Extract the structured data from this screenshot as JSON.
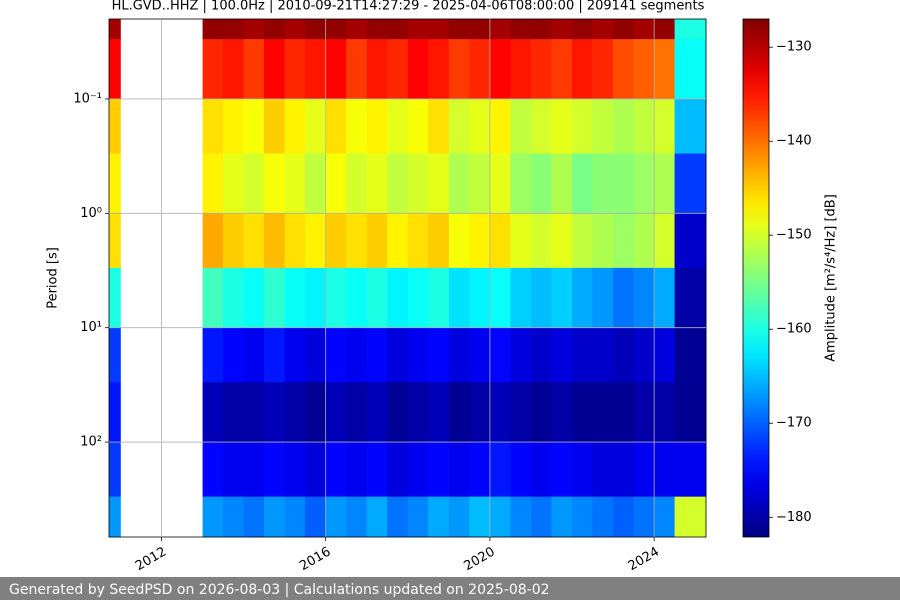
{
  "chart_data": {
    "type": "heatmap",
    "title": "HL.GVD..HHZ | 100.0Hz | 2010-09-21T14:27:29 - 2025-04-06T08:00:00 | 209141 segments",
    "ylabel": "Period [s]",
    "colorbar_label": "Amplitude [m²/s⁴/Hz] [dB]",
    "footer": "Generated by SeedPSD on 2026-08-03 | Calculations updated on 2025-08-02",
    "colormap": "jet",
    "grid": true,
    "ylog": true,
    "y_inverted": true,
    "xlim": [
      "2010-09-21T14:27:29",
      "2025-04-06T08:00:00"
    ],
    "xticks": [
      2012,
      2016,
      2020,
      2024
    ],
    "ylim": [
      0.02,
      676
    ],
    "yticks": [
      {
        "value": 0.1,
        "label": "10⁻¹"
      },
      {
        "value": 1,
        "label": "10⁰"
      },
      {
        "value": 10,
        "label": "10¹"
      },
      {
        "value": 100,
        "label": "10²"
      }
    ],
    "clim": [
      -182.1,
      -127
    ],
    "cticks": [
      {
        "value": -180,
        "label": "−180"
      },
      {
        "value": -170,
        "label": "−170"
      },
      {
        "value": -160,
        "label": "−160"
      },
      {
        "value": -150,
        "label": "−150"
      },
      {
        "value": -140,
        "label": "−140"
      },
      {
        "value": -130,
        "label": "−130"
      }
    ],
    "x": [
      "2010-09-21T14:27:29",
      "2011-01",
      "2013-01",
      "2013-07",
      "2014-01",
      "2014-07",
      "2015-01",
      "2015-07",
      "2016-01",
      "2016-07",
      "2017-01",
      "2017-07",
      "2018-01",
      "2018-07",
      "2019-01",
      "2019-07",
      "2020-01",
      "2020-07",
      "2021-01",
      "2021-07",
      "2022-01",
      "2022-07",
      "2023-01",
      "2023-07",
      "2024-01",
      "2024-07",
      "2025-04-06T08:00:00"
    ],
    "y": [
      0.02,
      0.03,
      0.1,
      0.3,
      1,
      3,
      10,
      30,
      100,
      300,
      676
    ],
    "z": [
      [
        -129,
        null,
        -128,
        -128,
        -129,
        -128,
        -129,
        -128,
        -128,
        -129,
        -128,
        -128,
        -129,
        -129,
        -128,
        -128,
        -129,
        -128,
        -128,
        -129,
        -128,
        -129,
        -128,
        -129,
        -128,
        -160
      ],
      [
        -134,
        null,
        -136,
        -135,
        -137,
        -134,
        -136,
        -135,
        -134,
        -137,
        -135,
        -136,
        -134,
        -135,
        -137,
        -136,
        -134,
        -135,
        -136,
        -137,
        -135,
        -136,
        -138,
        -139,
        -140,
        -161
      ],
      [
        -145,
        null,
        -146,
        -147,
        -148,
        -145,
        -147,
        -149,
        -146,
        -148,
        -147,
        -149,
        -148,
        -146,
        -150,
        -149,
        -147,
        -151,
        -150,
        -149,
        -150,
        -151,
        -152,
        -151,
        -150,
        -165
      ],
      [
        -147,
        null,
        -147,
        -149,
        -150,
        -148,
        -149,
        -151,
        -148,
        -150,
        -149,
        -151,
        -150,
        -149,
        -152,
        -151,
        -149,
        -153,
        -154,
        -152,
        -155,
        -154,
        -154,
        -153,
        -152,
        -172
      ],
      [
        -146,
        null,
        -143,
        -145,
        -146,
        -144,
        -146,
        -147,
        -145,
        -146,
        -145,
        -147,
        -146,
        -145,
        -148,
        -147,
        -146,
        -149,
        -150,
        -149,
        -151,
        -152,
        -153,
        -152,
        -150,
        -178
      ],
      [
        -160,
        null,
        -158,
        -160,
        -161,
        -159,
        -161,
        -162,
        -160,
        -161,
        -160,
        -162,
        -161,
        -160,
        -163,
        -162,
        -161,
        -164,
        -165,
        -164,
        -166,
        -167,
        -169,
        -168,
        -166,
        -180
      ],
      [
        -172,
        null,
        -174,
        -175,
        -176,
        -174,
        -176,
        -177,
        -175,
        -176,
        -175,
        -177,
        -176,
        -175,
        -177,
        -176,
        -175,
        -177,
        -178,
        -177,
        -178,
        -178,
        -179,
        -178,
        -177,
        -181
      ],
      [
        -174,
        null,
        -179,
        -180,
        -180,
        -179,
        -180,
        -181,
        -179,
        -180,
        -179,
        -181,
        -180,
        -179,
        -181,
        -180,
        -179,
        -180,
        -181,
        -180,
        -181,
        -181,
        -181,
        -180,
        -180,
        -181
      ],
      [
        -172,
        null,
        -175,
        -176,
        -176,
        -175,
        -176,
        -177,
        -175,
        -176,
        -175,
        -177,
        -176,
        -175,
        -176,
        -175,
        -174,
        -175,
        -176,
        -175,
        -176,
        -177,
        -177,
        -176,
        -176,
        -176
      ],
      [
        -167,
        null,
        -167,
        -168,
        -169,
        -167,
        -168,
        -170,
        -167,
        -168,
        -166,
        -169,
        -168,
        -166,
        -167,
        -165,
        -166,
        -168,
        -169,
        -167,
        -168,
        -169,
        -170,
        -169,
        -168,
        -150
      ]
    ]
  }
}
